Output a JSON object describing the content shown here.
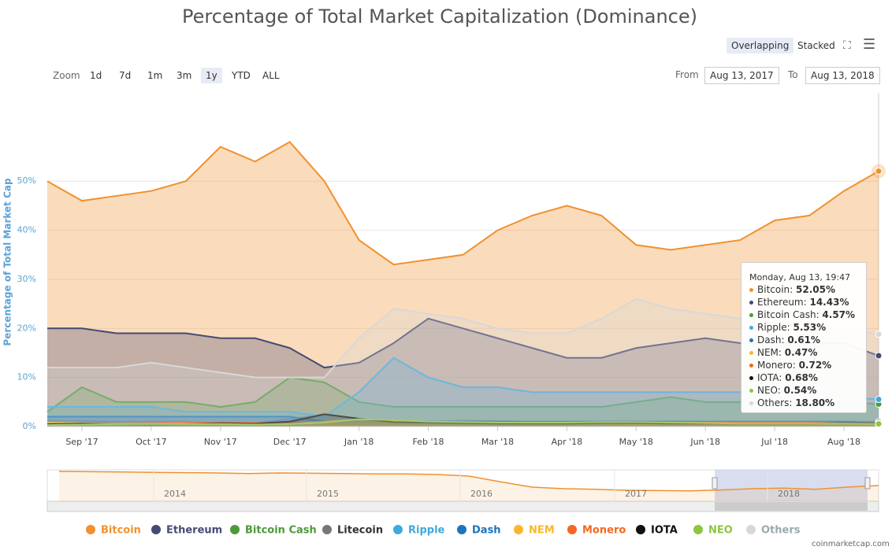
{
  "chart_data": {
    "type": "area",
    "title": "Percentage of Total Market Capitalization (Dominance)",
    "y_axis_label": "Percentage of Total Market Cap",
    "categories": [
      null,
      "Sep '17",
      null,
      "Oct '17",
      null,
      "Nov '17",
      null,
      "Dec '17",
      null,
      "Jan '18",
      null,
      "Feb '18",
      null,
      "Mar '18",
      null,
      "Apr '18",
      null,
      "May '18",
      null,
      "Jun '18",
      null,
      "Jul '18",
      null,
      "Aug '18",
      null
    ],
    "ylim": [
      0,
      68
    ],
    "yticks": [
      {
        "value": 0,
        "label": "0%"
      },
      {
        "value": 10,
        "label": "10%"
      },
      {
        "value": 20,
        "label": "20%"
      },
      {
        "value": 30,
        "label": "30%"
      },
      {
        "value": 40,
        "label": "40%"
      },
      {
        "value": 50,
        "label": "50%"
      }
    ],
    "grid": true,
    "series": [
      {
        "name": "Bitcoin",
        "color": "#f0912e",
        "values": [
          50,
          46,
          47,
          48,
          50,
          57,
          54,
          58,
          50,
          38,
          33,
          34,
          35,
          40,
          43,
          45,
          43,
          37,
          36,
          37,
          38,
          42,
          43,
          48,
          52.05
        ],
        "tooltip": "52.05%"
      },
      {
        "name": "Ethereum",
        "color": "#454a75",
        "values": [
          20,
          20,
          19,
          19,
          19,
          18,
          18,
          16,
          12,
          13,
          17,
          22,
          20,
          18,
          16,
          14,
          14,
          16,
          17,
          18,
          17,
          17,
          17,
          17,
          14.43
        ],
        "tooltip": "14.43%"
      },
      {
        "name": "Bitcoin Cash",
        "color": "#4c9a3a",
        "values": [
          3,
          8,
          5,
          5,
          5,
          4,
          5,
          10,
          9,
          5,
          4,
          4,
          4,
          4,
          4,
          4,
          4,
          5,
          6,
          5,
          5,
          5,
          5,
          5,
          4.57
        ],
        "tooltip": "4.57%"
      },
      {
        "name": "Litecoin",
        "color": "#777777",
        "values": [
          1.2,
          1.1,
          1,
          1,
          1,
          0.9,
          0.8,
          1.5,
          2.5,
          1.5,
          1,
          1,
          1.2,
          1.1,
          1,
          1,
          1,
          1,
          1,
          1,
          1,
          1,
          1,
          1,
          1
        ]
      },
      {
        "name": "Ripple",
        "color": "#3fa9dd",
        "values": [
          4,
          4,
          4,
          4,
          3,
          3,
          3,
          3,
          2,
          7,
          14,
          10,
          8,
          8,
          7,
          7,
          7,
          7,
          7,
          7,
          7,
          7,
          7,
          6,
          5.53
        ],
        "tooltip": "5.53%"
      },
      {
        "name": "Dash",
        "color": "#1c75bc",
        "values": [
          2,
          2,
          2,
          2,
          2,
          2,
          2,
          2,
          1,
          1,
          1,
          1,
          1,
          1,
          1,
          1,
          1,
          1,
          1,
          1,
          1,
          1,
          1,
          1,
          0.61
        ],
        "tooltip": "0.61%"
      },
      {
        "name": "NEM",
        "color": "#f9b82c",
        "values": [
          0.8,
          0.7,
          0.6,
          0.6,
          0.5,
          0.5,
          0.5,
          0.6,
          1,
          1.5,
          1.2,
          0.8,
          0.7,
          0.6,
          0.6,
          0.6,
          0.6,
          0.5,
          0.5,
          0.5,
          0.5,
          0.5,
          0.5,
          0.5,
          0.47
        ],
        "tooltip": "0.47%"
      },
      {
        "name": "Monero",
        "color": "#f26822",
        "values": [
          0.5,
          0.6,
          0.6,
          0.7,
          0.8,
          0.9,
          0.8,
          0.7,
          0.6,
          0.6,
          0.6,
          0.7,
          0.7,
          0.7,
          0.7,
          0.7,
          0.8,
          0.8,
          0.8,
          0.8,
          0.8,
          0.8,
          0.8,
          0.7,
          0.72
        ],
        "tooltip": "0.72%"
      },
      {
        "name": "IOTA",
        "color": "#111111",
        "values": [
          0.5,
          0.6,
          0.5,
          0.4,
          0.5,
          0.7,
          0.6,
          1,
          2.5,
          1.6,
          0.9,
          0.8,
          0.7,
          0.6,
          0.6,
          0.6,
          0.7,
          0.7,
          0.6,
          0.6,
          0.6,
          0.6,
          0.6,
          0.7,
          0.68
        ],
        "tooltip": "0.68%"
      },
      {
        "name": "NEO",
        "color": "#8dc63f",
        "values": [
          0.3,
          0.4,
          0.5,
          0.5,
          0.5,
          0.5,
          0.4,
          0.5,
          0.8,
          1.5,
          1.3,
          1,
          0.9,
          0.8,
          0.8,
          0.8,
          0.9,
          0.9,
          0.8,
          0.7,
          0.6,
          0.6,
          0.6,
          0.6,
          0.54
        ],
        "tooltip": "0.54%"
      },
      {
        "name": "Others",
        "color": "#d8d8d8",
        "values": [
          12,
          12,
          12,
          13,
          12,
          11,
          10,
          10,
          10,
          18,
          24,
          23,
          22,
          20,
          19,
          19,
          22,
          26,
          24,
          23,
          22,
          22,
          21,
          20,
          18.8
        ],
        "tooltip": "18.80%"
      }
    ],
    "tooltip_title": "Monday, Aug 13, 19:47",
    "navigator": {
      "years": [
        "2014",
        "2015",
        "2016",
        "2017",
        "2018"
      ],
      "values": [
        95,
        94,
        93,
        92,
        91,
        90,
        88,
        90,
        89,
        88,
        87,
        87,
        85,
        80,
        62,
        45,
        40,
        38,
        35,
        34,
        33,
        36,
        40,
        42,
        38,
        45,
        50
      ]
    }
  },
  "toolbar": {
    "modes": [
      "Overlapping",
      "Stacked"
    ],
    "zoom_label": "Zoom",
    "zoom": [
      "1d",
      "7d",
      "1m",
      "3m",
      "1y",
      "YTD",
      "ALL"
    ],
    "from_label": "From",
    "from": "Aug 13, 2017",
    "to_label": "To",
    "to": "Aug 13, 2018"
  },
  "credit": "coinmarketcap.com"
}
